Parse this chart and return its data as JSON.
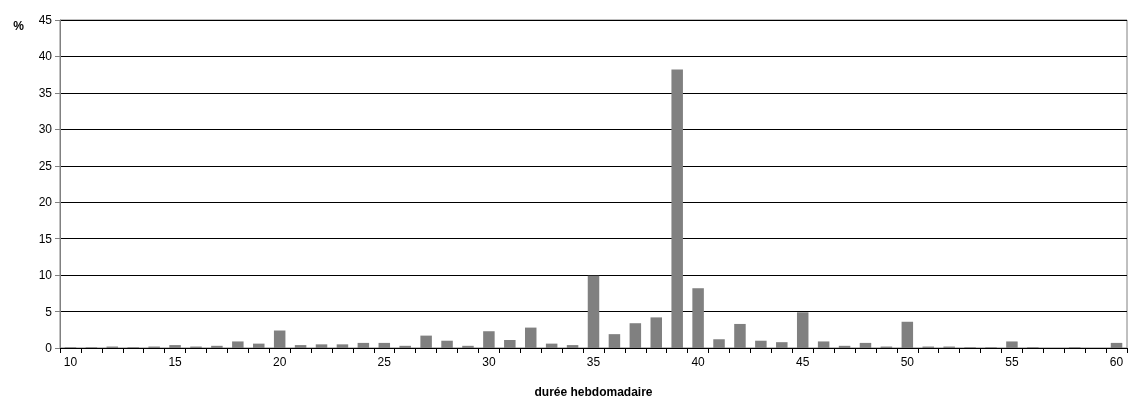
{
  "chart_data": {
    "type": "bar",
    "xlabel": "durée hebdomadaire",
    "ylabel": "%",
    "categories": [
      "10",
      null,
      null,
      null,
      null,
      "15",
      null,
      null,
      null,
      null,
      "20",
      null,
      null,
      null,
      null,
      "25",
      null,
      null,
      null,
      null,
      "30",
      null,
      null,
      null,
      null,
      "35",
      null,
      null,
      null,
      null,
      "40",
      null,
      null,
      null,
      null,
      "45",
      null,
      null,
      null,
      null,
      "50",
      null,
      null,
      null,
      null,
      "55",
      null,
      null,
      null,
      null,
      "60"
    ],
    "values": [
      0.1,
      0.1,
      0.2,
      0.1,
      0.2,
      0.4,
      0.2,
      0.3,
      0.9,
      0.6,
      2.4,
      0.4,
      0.5,
      0.5,
      0.7,
      0.7,
      0.3,
      1.7,
      1.0,
      0.3,
      2.3,
      1.1,
      2.8,
      0.6,
      0.4,
      9.9,
      1.9,
      3.4,
      4.2,
      38.2,
      8.2,
      1.2,
      3.3,
      1.0,
      0.8,
      4.9,
      0.9,
      0.3,
      0.7,
      0.2,
      3.6,
      0.2,
      0.2,
      0.1,
      0.1,
      0.9,
      0.1,
      0,
      0.1,
      0,
      0.7
    ],
    "color": "#808080",
    "ylim": [
      0,
      45
    ],
    "yticks": [
      0,
      5,
      10,
      15,
      20,
      25,
      30,
      35,
      40,
      45
    ],
    "grid": "y"
  }
}
